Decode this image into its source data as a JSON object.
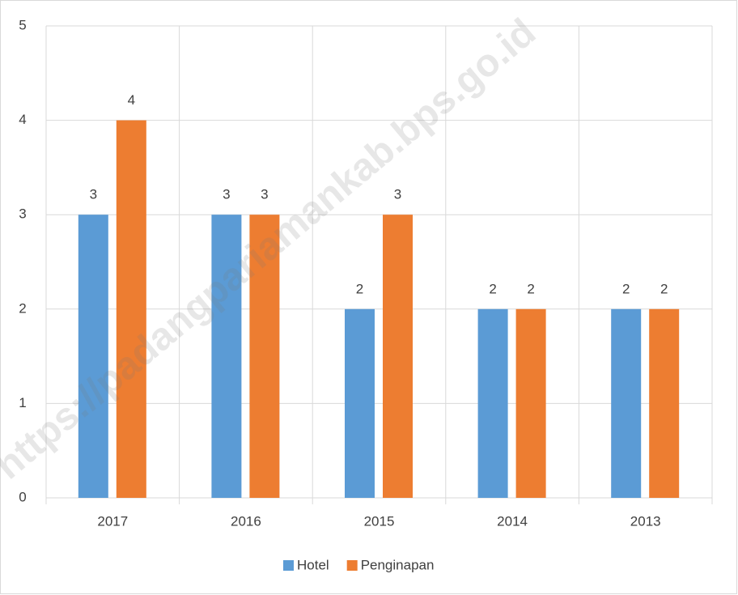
{
  "chart_data": {
    "type": "bar",
    "watermark": "https://padangpariamankab.bps.go.id",
    "categories": [
      "2017",
      "2016",
      "2015",
      "2014",
      "2013"
    ],
    "series": [
      {
        "name": "Hotel",
        "color": "#5b9bd5",
        "values": [
          3,
          3,
          2,
          2,
          2
        ]
      },
      {
        "name": "Penginapan",
        "color": "#ed7d31",
        "values": [
          4,
          3,
          3,
          2,
          2
        ]
      }
    ],
    "ylim": [
      0,
      5
    ],
    "yticks": [
      0,
      1,
      2,
      3,
      4,
      5
    ],
    "grid": true,
    "legend": "bottom"
  }
}
